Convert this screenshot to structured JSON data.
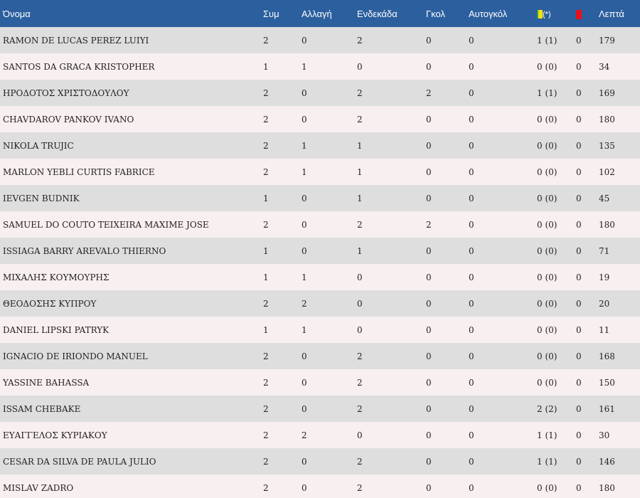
{
  "header": {
    "name": "Όνομα",
    "appearances": "Συμ",
    "substitution": "Αλλαγή",
    "starting_eleven": "Ενδεκάδα",
    "goals": "Γκολ",
    "own_goals": "Αυτογκόλ",
    "yellow_cards_mark": "(*)",
    "yellow_card_icon": "yellow-card-icon",
    "red_card_icon": "red-card-icon",
    "minutes": "Λεπτά"
  },
  "colors": {
    "header_bg": "#2c5f9e",
    "row_odd": "#dedede",
    "row_even": "#f8eff0",
    "yellow": "#f2e205",
    "red": "#e8101a"
  },
  "rows": [
    {
      "name": "RAMON DE LUCAS PEREZ LUIYI",
      "apps": "2",
      "sub": "0",
      "start": "2",
      "goals": "0",
      "own": "0",
      "yellow": "1 (1)",
      "red": "0",
      "min": "179"
    },
    {
      "name": "SANTOS DA GRACA KRISTOPHER",
      "apps": "1",
      "sub": "1",
      "start": "0",
      "goals": "0",
      "own": "0",
      "yellow": "0 (0)",
      "red": "0",
      "min": "34"
    },
    {
      "name": "ΗΡΟΔΟΤΟΣ ΧΡΙΣΤΟΔΟΥΛΟΥ",
      "apps": "2",
      "sub": "0",
      "start": "2",
      "goals": "2",
      "own": "0",
      "yellow": "1 (1)",
      "red": "0",
      "min": "169"
    },
    {
      "name": "CHAVDAROV PANKOV IVANO",
      "apps": "2",
      "sub": "0",
      "start": "2",
      "goals": "0",
      "own": "0",
      "yellow": "0 (0)",
      "red": "0",
      "min": "180"
    },
    {
      "name": "NIKOLA TRUJIC",
      "apps": "2",
      "sub": "1",
      "start": "1",
      "goals": "0",
      "own": "0",
      "yellow": "0 (0)",
      "red": "0",
      "min": "135"
    },
    {
      "name": "MARLON YEBLI CURTIS FABRICE",
      "apps": "2",
      "sub": "1",
      "start": "1",
      "goals": "0",
      "own": "0",
      "yellow": "0 (0)",
      "red": "0",
      "min": "102"
    },
    {
      "name": "IEVGEN BUDNIK",
      "apps": "1",
      "sub": "0",
      "start": "1",
      "goals": "0",
      "own": "0",
      "yellow": "0 (0)",
      "red": "0",
      "min": "45"
    },
    {
      "name": "SAMUEL DO COUTO TEIXEIRA MAXIME JOSE",
      "apps": "2",
      "sub": "0",
      "start": "2",
      "goals": "2",
      "own": "0",
      "yellow": "0 (0)",
      "red": "0",
      "min": "180"
    },
    {
      "name": "ISSIAGA BARRY AREVALO THIERNO",
      "apps": "1",
      "sub": "0",
      "start": "1",
      "goals": "0",
      "own": "0",
      "yellow": "0 (0)",
      "red": "0",
      "min": "71"
    },
    {
      "name": "ΜΙΧΑΛΗΣ ΚΟΥΜΟΥΡΗΣ",
      "apps": "1",
      "sub": "1",
      "start": "0",
      "goals": "0",
      "own": "0",
      "yellow": "0 (0)",
      "red": "0",
      "min": "19"
    },
    {
      "name": "ΘΕΟΔΟΣΗΣ ΚΥΠΡΟΥ",
      "apps": "2",
      "sub": "2",
      "start": "0",
      "goals": "0",
      "own": "0",
      "yellow": "0 (0)",
      "red": "0",
      "min": "20"
    },
    {
      "name": "DANIEL LIPSKI PATRYK",
      "apps": "1",
      "sub": "1",
      "start": "0",
      "goals": "0",
      "own": "0",
      "yellow": "0 (0)",
      "red": "0",
      "min": "11"
    },
    {
      "name": "IGNACIO DE IRIONDO MANUEL",
      "apps": "2",
      "sub": "0",
      "start": "2",
      "goals": "0",
      "own": "0",
      "yellow": "0 (0)",
      "red": "0",
      "min": "168"
    },
    {
      "name": "YASSINE BAHASSA",
      "apps": "2",
      "sub": "0",
      "start": "2",
      "goals": "0",
      "own": "0",
      "yellow": "0 (0)",
      "red": "0",
      "min": "150"
    },
    {
      "name": "ISSAM CHEBAKE",
      "apps": "2",
      "sub": "0",
      "start": "2",
      "goals": "0",
      "own": "0",
      "yellow": "2 (2)",
      "red": "0",
      "min": "161"
    },
    {
      "name": "ΕΥΑΓΓΕΛΟΣ ΚΥΡΙΑΚΟΥ",
      "apps": "2",
      "sub": "2",
      "start": "0",
      "goals": "0",
      "own": "0",
      "yellow": "1 (1)",
      "red": "0",
      "min": "30"
    },
    {
      "name": "CESAR DA SILVA DE PAULA JULIO",
      "apps": "2",
      "sub": "0",
      "start": "2",
      "goals": "0",
      "own": "0",
      "yellow": "1 (1)",
      "red": "0",
      "min": "146"
    },
    {
      "name": "MISLAV ZADRO",
      "apps": "2",
      "sub": "0",
      "start": "2",
      "goals": "0",
      "own": "0",
      "yellow": "0 (0)",
      "red": "0",
      "min": "180"
    }
  ]
}
